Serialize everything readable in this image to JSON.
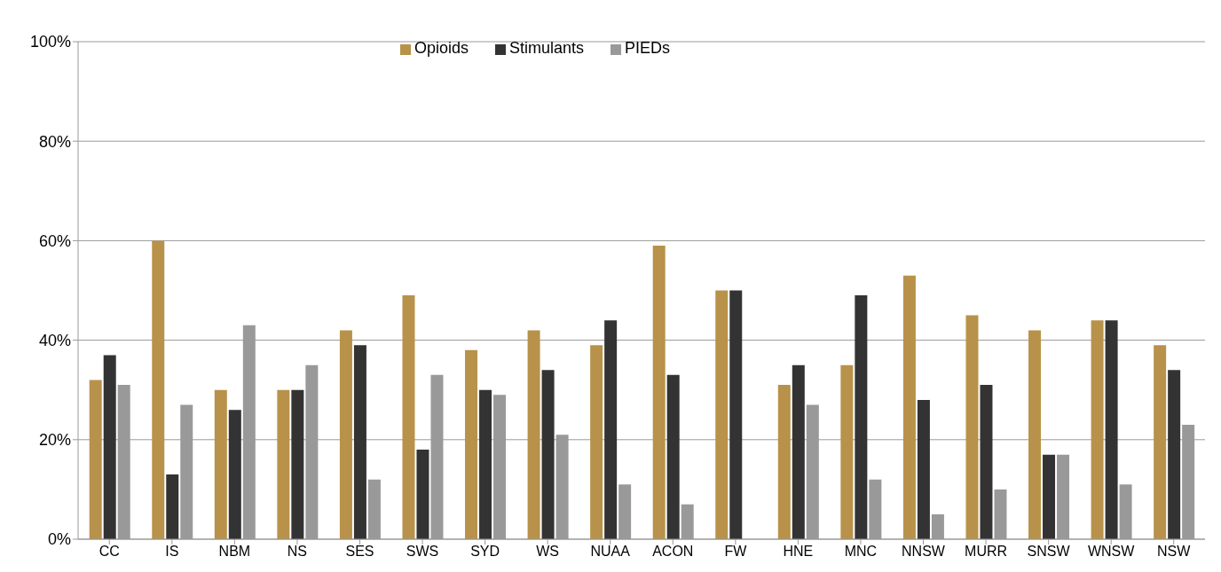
{
  "chart_data": {
    "type": "bar",
    "categories": [
      "CC",
      "IS",
      "NBM",
      "NS",
      "SES",
      "SWS",
      "SYD",
      "WS",
      "NUAA",
      "ACON",
      "FW",
      "HNE",
      "MNC",
      "NNSW",
      "MURR",
      "SNSW",
      "WNSW",
      "NSW"
    ],
    "series": [
      {
        "name": "Opioids",
        "color": "#b8924a",
        "values": [
          32,
          60,
          30,
          30,
          42,
          49,
          38,
          42,
          39,
          59,
          50,
          31,
          35,
          53,
          45,
          42,
          44,
          39
        ]
      },
      {
        "name": "Stimulants",
        "color": "#333333",
        "values": [
          37,
          13,
          26,
          30,
          39,
          18,
          30,
          34,
          44,
          33,
          50,
          35,
          49,
          28,
          31,
          17,
          44,
          34
        ]
      },
      {
        "name": "PIEDs",
        "color": "#999999",
        "values": [
          31,
          27,
          43,
          35,
          12,
          33,
          29,
          21,
          11,
          7,
          null,
          27,
          12,
          5,
          10,
          17,
          11,
          23
        ]
      }
    ],
    "ylim": [
      0,
      100
    ],
    "yticks": [
      {
        "value": 0,
        "label": "0%"
      },
      {
        "value": 20,
        "label": "20%"
      },
      {
        "value": 40,
        "label": "40%"
      },
      {
        "value": 60,
        "label": "60%"
      },
      {
        "value": 80,
        "label": "80%"
      },
      {
        "value": 100,
        "label": "100%"
      }
    ],
    "grid": "y",
    "legend": "top"
  }
}
